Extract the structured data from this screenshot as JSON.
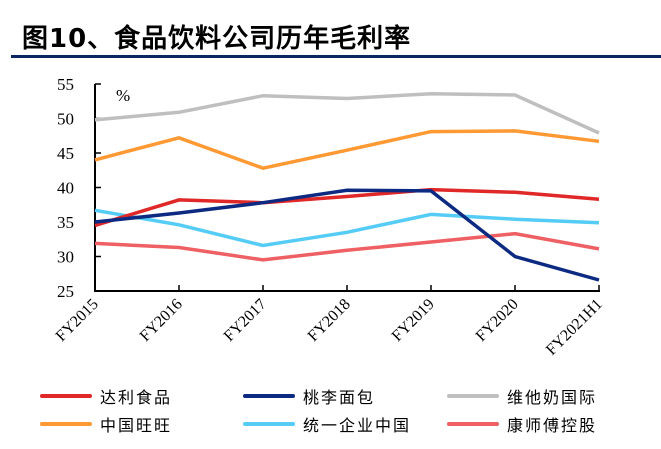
{
  "title": "图10、食品饮料公司历年毛利率",
  "chart_data": {
    "type": "line",
    "title": "图10、食品饮料公司历年毛利率",
    "unit_label": "%",
    "xlabel": "",
    "ylabel": "%",
    "categories": [
      "FY2015",
      "FY2016",
      "FY2017",
      "FY2018",
      "FY2019",
      "FY2020",
      "FY2021H1"
    ],
    "ylim": [
      25,
      55
    ],
    "yticks": [
      25,
      30,
      35,
      40,
      45,
      50,
      55
    ],
    "grid": false,
    "legend_position": "bottom",
    "series": [
      {
        "name": "达利食品",
        "color": "#E02828",
        "values": [
          34.5,
          38.2,
          37.8,
          38.7,
          39.7,
          39.3,
          38.3
        ]
      },
      {
        "name": "桃李面包",
        "color": "#0D2A82",
        "values": [
          35.0,
          36.3,
          37.8,
          39.6,
          39.5,
          30.0,
          26.6
        ]
      },
      {
        "name": "维他奶国际",
        "color": "#BFBFBF",
        "values": [
          49.8,
          50.9,
          53.3,
          52.9,
          53.6,
          53.4,
          47.9
        ]
      },
      {
        "name": "中国旺旺",
        "color": "#FF9933",
        "values": [
          44.0,
          47.2,
          42.8,
          45.4,
          48.1,
          48.2,
          46.7
        ]
      },
      {
        "name": "统一企业中国",
        "color": "#55CCF5",
        "values": [
          36.7,
          34.6,
          31.6,
          33.5,
          36.1,
          35.4,
          34.9
        ]
      },
      {
        "name": "康师傅控股",
        "color": "#EE6064",
        "values": [
          31.9,
          31.3,
          29.5,
          30.9,
          32.1,
          33.3,
          31.1
        ]
      }
    ]
  }
}
